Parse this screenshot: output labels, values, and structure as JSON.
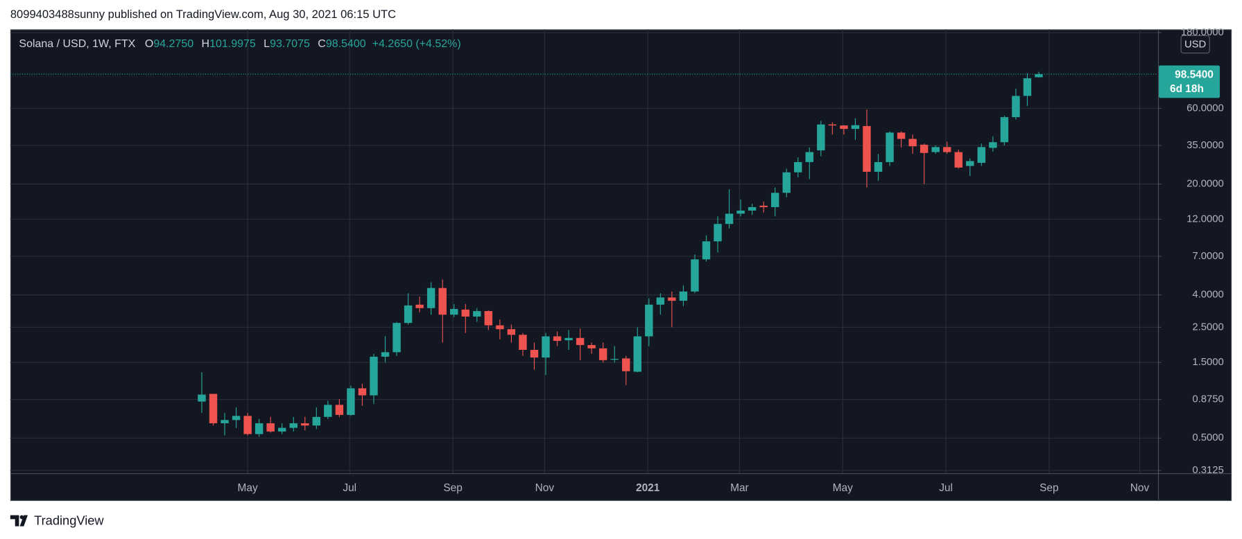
{
  "attribution": "8099403488sunny published on TradingView.com, Aug 30, 2021 06:15 UTC",
  "brand": "TradingView",
  "chart_data": {
    "type": "candlestick",
    "header": {
      "symbol": "Solana / USD, 1W, FTX",
      "fields": [
        {
          "key": "O",
          "value": "94.2750"
        },
        {
          "key": "H",
          "value": "101.9975"
        },
        {
          "key": "L",
          "value": "93.7075"
        },
        {
          "key": "C",
          "value": "98.5400"
        }
      ],
      "change": "+4.2650 (+4.52%)"
    },
    "currency": "USD",
    "price_tag": {
      "price": "98.5400",
      "countdown": "6d 18h"
    },
    "up_color": "#26a69a",
    "down_color": "#ef5350",
    "log_scale": true,
    "grid": true,
    "candles": {
      "open": [
        0.85,
        0.95,
        0.62,
        0.65,
        0.69,
        0.53,
        0.62,
        0.55,
        0.58,
        0.62,
        0.6,
        0.68,
        0.81,
        0.7,
        1.03,
        0.93,
        1.63,
        1.74,
        2.66,
        3.47,
        3.3,
        4.42,
        3.0,
        3.23,
        2.92,
        3.16,
        2.57,
        2.43,
        2.24,
        1.8,
        1.61,
        2.19,
        2.07,
        2.14,
        1.93,
        1.84,
        1.56,
        1.59,
        1.31,
        2.19,
        3.47,
        3.85,
        3.67,
        4.2,
        6.7,
        8.7,
        11.2,
        13.0,
        13.6,
        14.6,
        14.3,
        17.6,
        23.7,
        27.5,
        32.6,
        47.5,
        46.8,
        44.5,
        46.4,
        23.9,
        27.5,
        42.2,
        38.5,
        35.4,
        31.8,
        34.2,
        31.8,
        26.0,
        27.2,
        33.8,
        36.7,
        52.8,
        71.9,
        94.275
      ],
      "high": [
        1.3,
        0.95,
        0.72,
        0.78,
        0.72,
        0.66,
        0.68,
        0.62,
        0.68,
        0.68,
        0.78,
        0.86,
        0.88,
        1.07,
        1.1,
        1.7,
        2.2,
        2.7,
        4.1,
        3.9,
        4.8,
        5.0,
        3.5,
        3.5,
        3.3,
        3.2,
        2.8,
        2.6,
        2.3,
        2.0,
        2.3,
        2.35,
        2.4,
        2.45,
        2.0,
        2.0,
        1.9,
        1.65,
        2.5,
        3.8,
        4.1,
        4.2,
        4.6,
        7.2,
        9.5,
        12.5,
        18.5,
        16,
        15,
        15.5,
        19,
        25,
        29.5,
        34,
        50,
        49,
        47,
        52,
        59,
        31,
        43,
        43,
        41,
        36,
        35,
        37,
        33,
        29,
        36,
        40,
        54,
        80,
        100,
        101.9975
      ],
      "low": [
        0.72,
        0.6,
        0.52,
        0.58,
        0.52,
        0.51,
        0.54,
        0.53,
        0.55,
        0.56,
        0.57,
        0.66,
        0.68,
        0.69,
        0.8,
        0.82,
        1.5,
        1.65,
        2.6,
        3.1,
        3.0,
        2.0,
        2.9,
        2.3,
        2.7,
        2.4,
        2.1,
        2.0,
        1.65,
        1.35,
        1.25,
        1.9,
        1.8,
        1.55,
        1.7,
        1.5,
        1.5,
        1.08,
        1.3,
        1.9,
        3.0,
        2.5,
        3.4,
        4.1,
        6.5,
        7.4,
        10.5,
        12.5,
        12.8,
        13.2,
        12.5,
        16.5,
        22,
        21.5,
        30,
        41,
        41,
        38,
        19,
        21,
        26,
        34,
        31,
        20,
        31,
        31,
        25,
        22.5,
        26,
        32,
        35,
        51,
        62,
        93.7075
      ],
      "close": [
        0.94,
        0.62,
        0.65,
        0.69,
        0.53,
        0.62,
        0.55,
        0.58,
        0.62,
        0.6,
        0.68,
        0.81,
        0.7,
        1.03,
        0.93,
        1.63,
        1.74,
        2.66,
        3.43,
        3.3,
        4.42,
        3.0,
        3.26,
        2.92,
        3.16,
        2.57,
        2.43,
        2.24,
        1.8,
        1.61,
        2.19,
        2.05,
        2.14,
        1.93,
        1.84,
        1.55,
        1.58,
        1.32,
        2.19,
        3.47,
        3.85,
        3.67,
        4.2,
        6.7,
        8.7,
        11.2,
        13.0,
        13.6,
        14.3,
        14.3,
        17.6,
        23.7,
        27.5,
        31.8,
        47.5,
        46.8,
        44.5,
        47.0,
        23.9,
        27.5,
        42.2,
        38.5,
        34.6,
        31.4,
        34.2,
        31.8,
        25.4,
        27.9,
        34.2,
        36.7,
        52.8,
        71.9,
        92.9,
        98.54
      ]
    },
    "xlim": [
      -16.7,
      83.4
    ],
    "xticks": [
      {
        "value": 4.0,
        "label": "May"
      },
      {
        "value": 12.9,
        "label": "Jul"
      },
      {
        "value": 21.9,
        "label": "Sep"
      },
      {
        "value": 29.9,
        "label": "Nov"
      },
      {
        "value": 38.9,
        "label": "2021"
      },
      {
        "value": 46.9,
        "label": "Mar"
      },
      {
        "value": 55.9,
        "label": "May"
      },
      {
        "value": 64.9,
        "label": "Jul"
      },
      {
        "value": 73.9,
        "label": "Sep"
      },
      {
        "value": 81.8,
        "label": "Nov"
      }
    ],
    "ylim": [
      0.3,
      189
    ],
    "yticks": [
      {
        "value": 180,
        "label": "180.0000"
      },
      {
        "value": 60,
        "label": "60.0000"
      },
      {
        "value": 35,
        "label": "35.0000"
      },
      {
        "value": 20,
        "label": "20.0000"
      },
      {
        "value": 12,
        "label": "12.0000"
      },
      {
        "value": 7,
        "label": "7.0000"
      },
      {
        "value": 4,
        "label": "4.0000"
      },
      {
        "value": 2.5,
        "label": "2.5000"
      },
      {
        "value": 1.5,
        "label": "1.5000"
      },
      {
        "value": 0.875,
        "label": "0.8750"
      },
      {
        "value": 0.5,
        "label": "0.5000"
      },
      {
        "value": 0.3125,
        "label": "0.3125"
      }
    ]
  }
}
